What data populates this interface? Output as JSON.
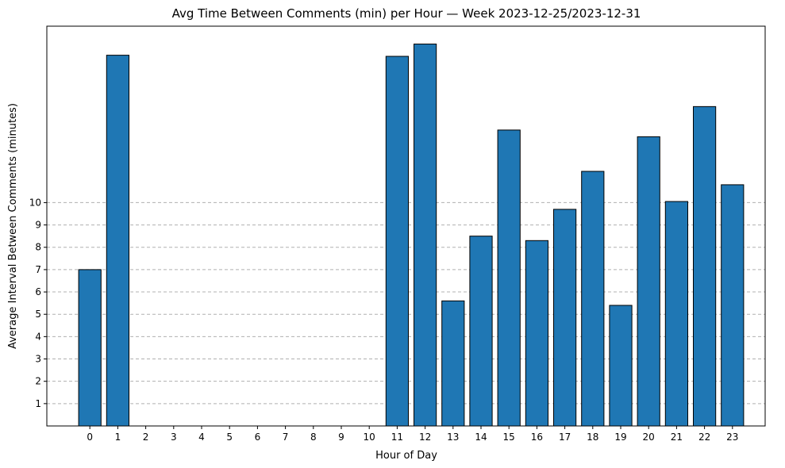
{
  "chart_data": {
    "type": "bar",
    "title": "Avg Time Between Comments (min) per Hour — Week 2023-12-25/2023-12-31",
    "xlabel": "Hour of Day",
    "ylabel": "Average Interval Between Comments (minutes)",
    "categories": [
      "0",
      "1",
      "2",
      "3",
      "4",
      "5",
      "6",
      "7",
      "8",
      "9",
      "10",
      "11",
      "12",
      "13",
      "14",
      "15",
      "16",
      "17",
      "18",
      "19",
      "20",
      "21",
      "22",
      "23"
    ],
    "values": [
      7.0,
      16.6,
      0,
      0,
      0,
      0,
      0,
      0,
      0,
      0,
      0,
      16.55,
      17.1,
      5.6,
      8.5,
      13.25,
      8.3,
      9.7,
      11.4,
      5.4,
      12.95,
      10.05,
      14.3,
      10.8
    ],
    "yticks": [
      "1",
      "2",
      "3",
      "4",
      "5",
      "6",
      "7",
      "8",
      "9",
      "10"
    ],
    "ylim": [
      0,
      17.9
    ],
    "grid": "y-dashed",
    "colors": {
      "bar": "#1f77b4",
      "edge": "#000000",
      "grid": "#b0b0b0"
    }
  }
}
